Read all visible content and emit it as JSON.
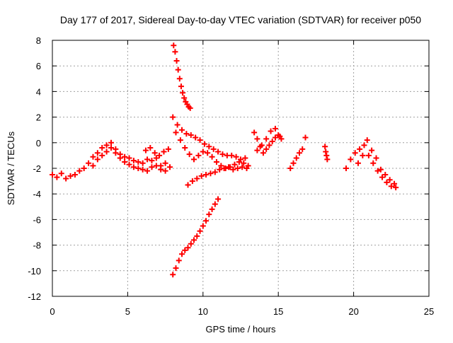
{
  "chart_data": {
    "type": "scatter",
    "title": "Day 177 of 2017, Sidereal Day-to-day VTEC variation (SDTVAR) for receiver p050",
    "xlabel": "GPS time / hours",
    "ylabel": "SDTVAR / TECUs",
    "xlim": [
      0,
      25
    ],
    "ylim": [
      -12,
      8
    ],
    "xticks": [
      0,
      5,
      10,
      15,
      20,
      25
    ],
    "yticks": [
      -12,
      -10,
      -8,
      -6,
      -4,
      -2,
      0,
      2,
      4,
      6,
      8
    ],
    "grid": true,
    "marker": "plus",
    "color": "#ff0000",
    "series": [
      {
        "x": [
          0.0,
          0.3,
          0.6,
          0.9,
          1.2,
          1.5,
          1.8,
          2.1,
          2.4,
          2.7,
          3.0,
          3.3,
          3.6,
          3.9,
          4.2,
          4.5,
          4.8,
          5.1,
          5.4,
          5.7,
          6.0,
          6.3,
          6.6,
          6.9,
          7.2,
          7.5,
          7.8
        ],
        "y": [
          -2.5,
          -2.7,
          -2.4,
          -2.8,
          -2.6,
          -2.5,
          -2.2,
          -2.0,
          -1.6,
          -1.1,
          -0.8,
          -0.4,
          -0.2,
          0.0,
          -0.5,
          -0.9,
          -1.1,
          -1.2,
          -1.4,
          -1.5,
          -1.6,
          -1.3,
          -1.4,
          -1.2,
          -1.8,
          -1.6,
          -1.9
        ]
      },
      {
        "x": [
          2.7,
          3.0,
          3.3,
          3.6,
          3.9,
          4.2,
          4.5,
          4.8,
          5.1,
          5.4,
          5.7,
          6.0,
          6.3,
          6.6,
          6.9,
          7.2,
          7.5
        ],
        "y": [
          -1.8,
          -1.3,
          -1.0,
          -0.7,
          -0.4,
          -0.8,
          -1.2,
          -1.5,
          -1.7,
          -1.9,
          -2.0,
          -2.1,
          -2.2,
          -1.9,
          -1.8,
          -2.1,
          -2.2
        ]
      },
      {
        "x": [
          6.2,
          6.5,
          6.8,
          7.1,
          7.4,
          7.7
        ],
        "y": [
          -0.6,
          -0.4,
          -0.8,
          -1.0,
          -0.7,
          -0.5
        ]
      },
      {
        "x": [
          8.05,
          8.15,
          8.25,
          8.35,
          8.45,
          8.55,
          8.65,
          8.75,
          8.85,
          8.95,
          9.05,
          9.15
        ],
        "y": [
          7.6,
          7.1,
          6.4,
          5.7,
          5.0,
          4.4,
          3.9,
          3.5,
          3.2,
          3.0,
          2.8,
          2.7
        ]
      },
      {
        "x": [
          8.0,
          8.3,
          8.6,
          8.9,
          9.2,
          9.5,
          9.8,
          10.1,
          10.4,
          10.7,
          11.0,
          11.3,
          11.6,
          11.9,
          12.2,
          12.5,
          12.8
        ],
        "y": [
          2.0,
          1.4,
          1.0,
          0.7,
          0.6,
          0.4,
          0.2,
          -0.1,
          -0.3,
          -0.5,
          -0.7,
          -0.9,
          -1.0,
          -1.0,
          -1.1,
          -1.3,
          -1.2
        ]
      },
      {
        "x": [
          8.2,
          8.5,
          8.8,
          9.1,
          9.4,
          9.7,
          10.0,
          10.3,
          10.6,
          10.9,
          11.2,
          11.5,
          11.8,
          12.1,
          12.4,
          12.7,
          13.0
        ],
        "y": [
          0.8,
          0.2,
          -0.4,
          -0.9,
          -1.3,
          -1.0,
          -0.7,
          -0.8,
          -1.1,
          -1.5,
          -1.8,
          -2.0,
          -1.9,
          -1.7,
          -1.5,
          -1.6,
          -1.8
        ]
      },
      {
        "x": [
          9.0,
          9.3,
          9.6,
          9.9,
          10.2,
          10.5,
          10.8,
          11.1,
          11.4,
          11.7,
          12.0,
          12.3,
          12.6,
          12.9
        ],
        "y": [
          -3.3,
          -3.0,
          -2.8,
          -2.6,
          -2.5,
          -2.4,
          -2.3,
          -2.1,
          -2.0,
          -1.9,
          -2.1,
          -2.0,
          -1.9,
          -2.0
        ]
      },
      {
        "x": [
          8.0,
          8.2,
          8.4,
          8.6,
          8.8,
          9.0,
          9.2,
          9.4,
          9.6,
          9.8,
          10.0,
          10.2,
          10.4,
          10.6,
          10.8,
          11.0
        ],
        "y": [
          -10.3,
          -9.8,
          -9.2,
          -8.7,
          -8.4,
          -8.2,
          -7.9,
          -7.6,
          -7.3,
          -6.9,
          -6.5,
          -6.1,
          -5.6,
          -5.2,
          -4.8,
          -4.4
        ]
      },
      {
        "x": [
          13.4,
          13.6,
          13.8,
          14.0,
          14.2,
          14.4,
          14.6,
          14.8,
          15.0,
          15.2
        ],
        "y": [
          0.8,
          0.3,
          -0.3,
          -0.8,
          -0.5,
          -0.2,
          0.1,
          0.4,
          0.6,
          0.3
        ]
      },
      {
        "x": [
          13.6,
          13.9,
          14.2,
          14.5,
          14.8,
          15.1
        ],
        "y": [
          -0.6,
          -0.2,
          0.3,
          0.9,
          1.1,
          0.5
        ]
      },
      {
        "x": [
          15.8,
          16.0,
          16.2,
          16.4,
          16.6,
          16.8
        ],
        "y": [
          -2.0,
          -1.6,
          -1.2,
          -0.8,
          -0.5,
          0.4
        ]
      },
      {
        "x": [
          18.1,
          18.15,
          18.2,
          18.25
        ],
        "y": [
          -0.3,
          -0.7,
          -1.0,
          -1.3
        ]
      },
      {
        "x": [
          19.5,
          19.8,
          20.1,
          20.4,
          20.7,
          21.0,
          21.3,
          21.6,
          21.9,
          22.2,
          22.5,
          22.8
        ],
        "y": [
          -2.0,
          -1.3,
          -0.8,
          -0.5,
          -0.2,
          -1.0,
          -1.6,
          -2.2,
          -2.7,
          -3.1,
          -3.4,
          -3.5
        ]
      },
      {
        "x": [
          20.3,
          20.6,
          20.9,
          21.2,
          21.5,
          21.8,
          22.1,
          22.4,
          22.7
        ],
        "y": [
          -1.6,
          -1.0,
          0.2,
          -0.6,
          -1.2,
          -2.1,
          -2.5,
          -2.9,
          -3.2
        ]
      }
    ]
  }
}
